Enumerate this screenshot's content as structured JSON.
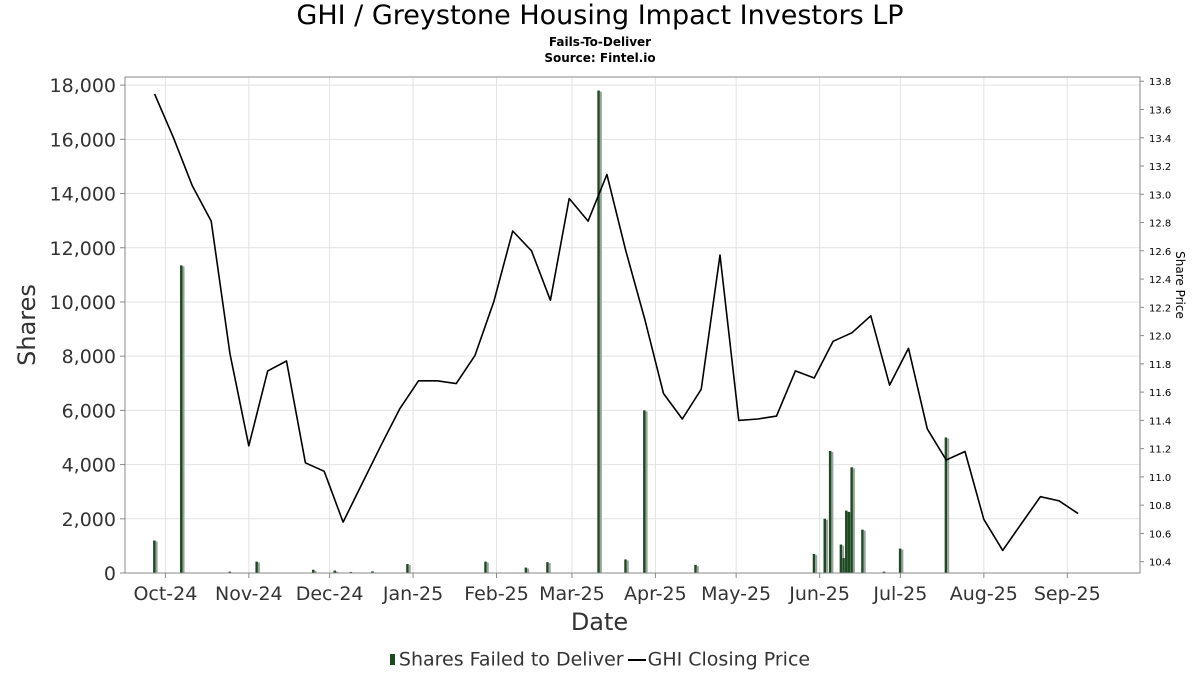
{
  "title": "GHI / Greystone Housing Impact Investors LP",
  "subtitle": "Fails-To-Deliver",
  "source": "Source: Fintel.io",
  "legend": {
    "bars_label": "Shares Failed to Deliver",
    "line_label": "GHI Closing Price"
  },
  "chart_data": {
    "type": "bar",
    "title": "GHI / Greystone Housing Impact Investors LP",
    "subtitle": "Fails-To-Deliver",
    "xlabel": "Date",
    "ylabel": "Shares",
    "y2label": "Share Price",
    "ylim": [
      0,
      18300
    ],
    "y2lim": [
      10.32,
      13.83
    ],
    "xlim": [
      "2024-09-16",
      "2025-09-28"
    ],
    "yticks": [
      "0",
      "2,000",
      "4,000",
      "6,000",
      "8,000",
      "10,000",
      "12,000",
      "14,000",
      "16,000",
      "18,000"
    ],
    "y2ticks": [
      "10.4",
      "10.6",
      "10.8",
      "11.0",
      "11.2",
      "11.4",
      "11.6",
      "11.8",
      "12.0",
      "12.2",
      "12.4",
      "12.6",
      "12.8",
      "13.0",
      "13.2",
      "13.4",
      "13.6",
      "13.8"
    ],
    "xticks": [
      {
        "label": "Oct-24",
        "date": "2024-10-01"
      },
      {
        "label": "Nov-24",
        "date": "2024-11-01"
      },
      {
        "label": "Dec-24",
        "date": "2024-12-01"
      },
      {
        "label": "Jan-25",
        "date": "2025-01-01"
      },
      {
        "label": "Feb-25",
        "date": "2025-02-01"
      },
      {
        "label": "Mar-25",
        "date": "2025-03-01"
      },
      {
        "label": "Apr-25",
        "date": "2025-04-01"
      },
      {
        "label": "May-25",
        "date": "2025-05-01"
      },
      {
        "label": "Jun-25",
        "date": "2025-06-01"
      },
      {
        "label": "Jul-25",
        "date": "2025-07-01"
      },
      {
        "label": "Aug-25",
        "date": "2025-08-01"
      },
      {
        "label": "Sep-25",
        "date": "2025-09-01"
      }
    ],
    "grid": true,
    "legend_position": "bottom",
    "series": [
      {
        "name": "Shares Failed to Deliver",
        "type": "bar",
        "color": "#1d4a23",
        "points": [
          {
            "x": "2024-09-27",
            "y": 1200
          },
          {
            "x": "2024-10-07",
            "y": 11350
          },
          {
            "x": "2024-10-25",
            "y": 50
          },
          {
            "x": "2024-11-04",
            "y": 420
          },
          {
            "x": "2024-11-25",
            "y": 120
          },
          {
            "x": "2024-12-03",
            "y": 90
          },
          {
            "x": "2024-12-09",
            "y": 40
          },
          {
            "x": "2024-12-17",
            "y": 60
          },
          {
            "x": "2024-12-30",
            "y": 330
          },
          {
            "x": "2025-01-28",
            "y": 420
          },
          {
            "x": "2025-02-12",
            "y": 200
          },
          {
            "x": "2025-02-20",
            "y": 400
          },
          {
            "x": "2025-03-11",
            "y": 17800
          },
          {
            "x": "2025-03-21",
            "y": 500
          },
          {
            "x": "2025-03-28",
            "y": 6000
          },
          {
            "x": "2025-04-16",
            "y": 300
          },
          {
            "x": "2025-05-30",
            "y": 700
          },
          {
            "x": "2025-06-03",
            "y": 2000
          },
          {
            "x": "2025-06-05",
            "y": 4500
          },
          {
            "x": "2025-06-09",
            "y": 1050
          },
          {
            "x": "2025-06-10",
            "y": 550
          },
          {
            "x": "2025-06-11",
            "y": 2300
          },
          {
            "x": "2025-06-12",
            "y": 2250
          },
          {
            "x": "2025-06-13",
            "y": 3900
          },
          {
            "x": "2025-06-17",
            "y": 1600
          },
          {
            "x": "2025-06-25",
            "y": 50
          },
          {
            "x": "2025-07-01",
            "y": 900
          },
          {
            "x": "2025-07-18",
            "y": 5000
          }
        ]
      },
      {
        "name": "GHI Closing Price",
        "type": "line",
        "axis": "right",
        "color": "#000000",
        "points": [
          {
            "x": "2024-09-27",
            "y": 13.71
          },
          {
            "x": "2024-10-04",
            "y": 13.4
          },
          {
            "x": "2024-10-11",
            "y": 13.06
          },
          {
            "x": "2024-10-18",
            "y": 12.81
          },
          {
            "x": "2024-10-25",
            "y": 11.87
          },
          {
            "x": "2024-11-01",
            "y": 11.22
          },
          {
            "x": "2024-11-08",
            "y": 11.75
          },
          {
            "x": "2024-11-15",
            "y": 11.82
          },
          {
            "x": "2024-11-22",
            "y": 11.1
          },
          {
            "x": "2024-11-29",
            "y": 11.04
          },
          {
            "x": "2024-12-06",
            "y": 10.68
          },
          {
            "x": "2024-12-13",
            "y": 10.95
          },
          {
            "x": "2024-12-20",
            "y": 11.22
          },
          {
            "x": "2024-12-27",
            "y": 11.48
          },
          {
            "x": "2025-01-03",
            "y": 11.68
          },
          {
            "x": "2025-01-10",
            "y": 11.68
          },
          {
            "x": "2025-01-17",
            "y": 11.66
          },
          {
            "x": "2025-01-24",
            "y": 11.86
          },
          {
            "x": "2025-01-31",
            "y": 12.24
          },
          {
            "x": "2025-02-07",
            "y": 12.74
          },
          {
            "x": "2025-02-14",
            "y": 12.6
          },
          {
            "x": "2025-02-21",
            "y": 12.25
          },
          {
            "x": "2025-02-28",
            "y": 12.97
          },
          {
            "x": "2025-03-07",
            "y": 12.81
          },
          {
            "x": "2025-03-14",
            "y": 13.14
          },
          {
            "x": "2025-03-21",
            "y": 12.6
          },
          {
            "x": "2025-03-28",
            "y": 12.12
          },
          {
            "x": "2025-04-04",
            "y": 11.59
          },
          {
            "x": "2025-04-11",
            "y": 11.41
          },
          {
            "x": "2025-04-18",
            "y": 11.62
          },
          {
            "x": "2025-04-25",
            "y": 12.57
          },
          {
            "x": "2025-05-02",
            "y": 11.4
          },
          {
            "x": "2025-05-09",
            "y": 11.41
          },
          {
            "x": "2025-05-16",
            "y": 11.43
          },
          {
            "x": "2025-05-23",
            "y": 11.75
          },
          {
            "x": "2025-05-30",
            "y": 11.7
          },
          {
            "x": "2025-06-06",
            "y": 11.96
          },
          {
            "x": "2025-06-13",
            "y": 12.02
          },
          {
            "x": "2025-06-20",
            "y": 12.14
          },
          {
            "x": "2025-06-27",
            "y": 11.65
          },
          {
            "x": "2025-07-04",
            "y": 11.91
          },
          {
            "x": "2025-07-11",
            "y": 11.34
          },
          {
            "x": "2025-07-18",
            "y": 11.12
          },
          {
            "x": "2025-07-25",
            "y": 11.18
          },
          {
            "x": "2025-08-01",
            "y": 10.7
          },
          {
            "x": "2025-08-08",
            "y": 10.48
          },
          {
            "x": "2025-08-15",
            "y": 10.67
          },
          {
            "x": "2025-08-22",
            "y": 10.86
          },
          {
            "x": "2025-08-29",
            "y": 10.83
          },
          {
            "x": "2025-09-05",
            "y": 10.74
          }
        ]
      }
    ]
  }
}
